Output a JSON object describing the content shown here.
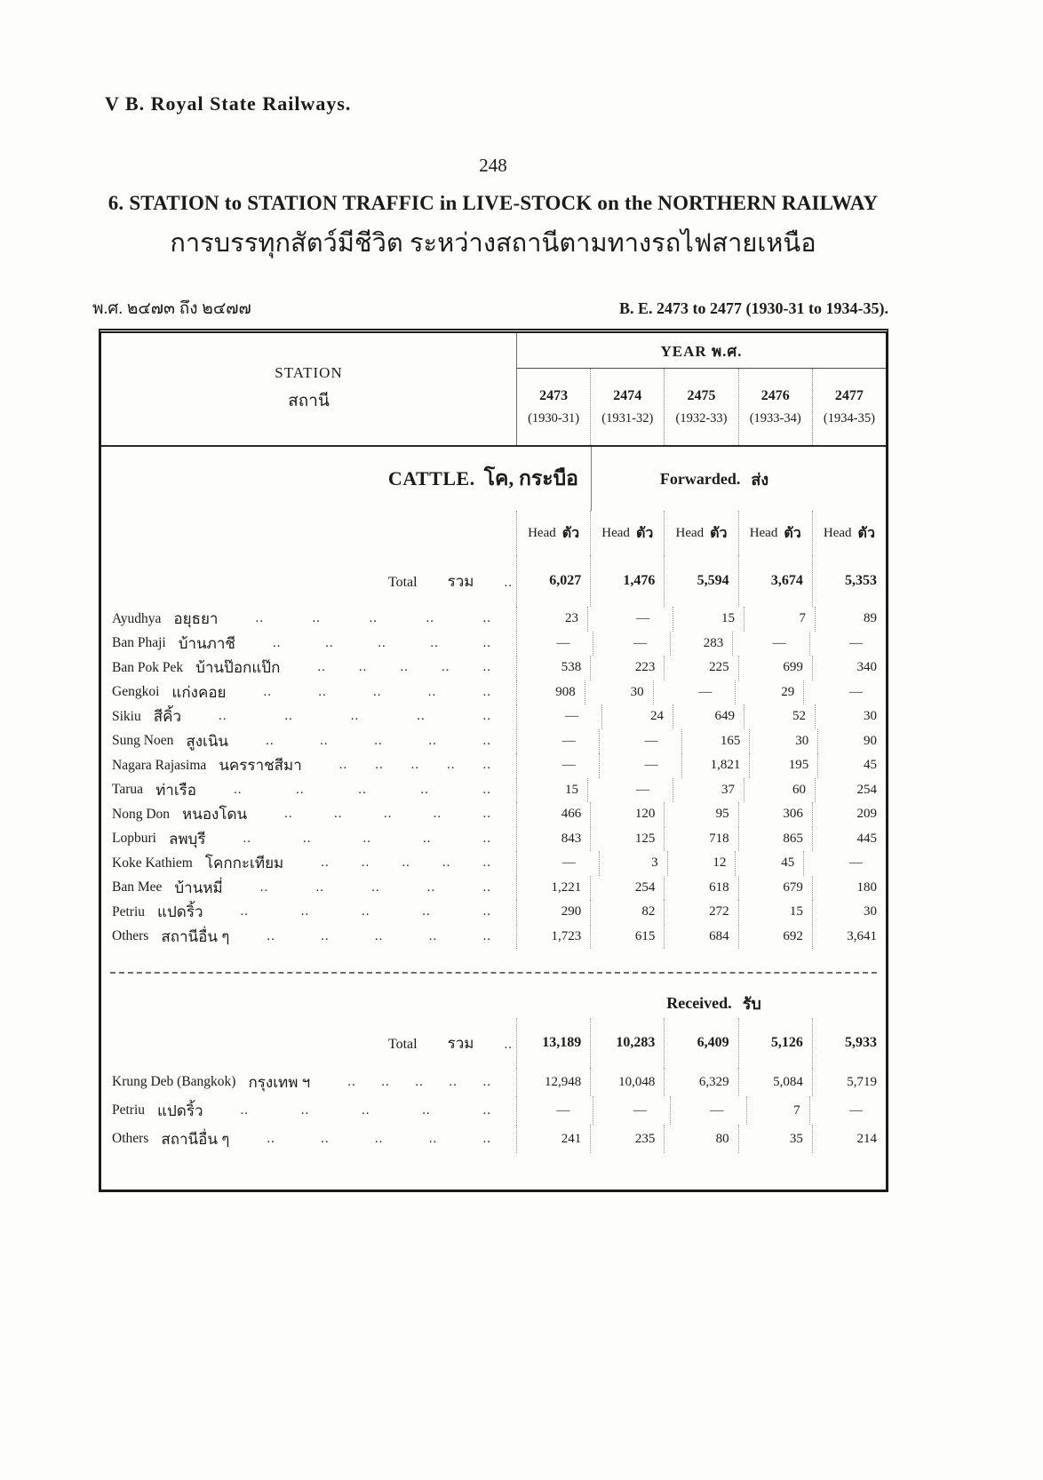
{
  "page": {
    "header": "V B.  Royal State Railways.",
    "page_number": "248",
    "title": "6.   STATION to STATION TRAFFIC in LIVE-STOCK on the NORTHERN RAILWAY",
    "subtitle_thai": "การบรรทุกสัตว์มีชีวิต   ระหว่างสถานีตามทางรถไฟสายเหนือ",
    "period_thai": "พ.ศ. ๒๔๗๓ ถึง ๒๔๗๗",
    "period_english": "B. E. 2473 to 2477 (1930-31 to 1934-35)."
  },
  "table": {
    "station_header_en": "STATION",
    "station_header_th": "สถานี",
    "year_header": "YEAR  พ.ศ.",
    "year_columns": [
      {
        "be": "2473",
        "ad": "(1930-31)"
      },
      {
        "be": "2474",
        "ad": "(1931-32)"
      },
      {
        "be": "2475",
        "ad": "(1932-33)"
      },
      {
        "be": "2476",
        "ad": "(1933-34)"
      },
      {
        "be": "2477",
        "ad": "(1934-35)"
      }
    ],
    "unit_en": "Head",
    "unit_th": "ตัว",
    "leader_dots": "..",
    "total_label_en": "Total",
    "total_label_th": "รวม",
    "sections": [
      {
        "id": "forwarded",
        "category_en": "CATTLE.",
        "category_th": "โค, กระบือ",
        "direction_en": "Forwarded.",
        "direction_th": "ส่ง",
        "total_values": [
          "6,027",
          "1,476",
          "5,594",
          "3,674",
          "5,353"
        ],
        "rows": [
          {
            "en": "Ayudhya",
            "th": "อยุธยา",
            "values": [
              "23",
              "—",
              "15",
              "7",
              "89"
            ]
          },
          {
            "en": "Ban Phaji",
            "th": "บ้านภาชี",
            "values": [
              "—",
              "—",
              "283",
              "—",
              "—"
            ]
          },
          {
            "en": "Ban Pok Pek",
            "th": "บ้านป๊อกแป๊ก",
            "values": [
              "538",
              "223",
              "225",
              "699",
              "340"
            ]
          },
          {
            "en": "Gengkoi",
            "th": "แก่งคอย",
            "values": [
              "908",
              "30",
              "—",
              "29",
              "—"
            ]
          },
          {
            "en": "Sikiu",
            "th": "สีคิ้ว",
            "values": [
              "—",
              "24",
              "649",
              "52",
              "30"
            ]
          },
          {
            "en": "Sung Noen",
            "th": "สูงเนิน",
            "values": [
              "—",
              "—",
              "165",
              "30",
              "90"
            ]
          },
          {
            "en": "Nagara Rajasima",
            "th": "นครราชสีมา",
            "values": [
              "—",
              "—",
              "1,821",
              "195",
              "45"
            ]
          },
          {
            "en": "Tarua",
            "th": "ท่าเรือ",
            "values": [
              "15",
              "—",
              "37",
              "60",
              "254"
            ]
          },
          {
            "en": "Nong Don",
            "th": "หนองโดน",
            "values": [
              "466",
              "120",
              "95",
              "306",
              "209"
            ]
          },
          {
            "en": "Lopburi",
            "th": "ลพบุรี",
            "values": [
              "843",
              "125",
              "718",
              "865",
              "445"
            ]
          },
          {
            "en": "Koke Kathiem",
            "th": "โคกกะเทียม",
            "values": [
              "—",
              "3",
              "12",
              "45",
              "—"
            ]
          },
          {
            "en": "Ban Mee",
            "th": "บ้านหมี่",
            "values": [
              "1,221",
              "254",
              "618",
              "679",
              "180"
            ]
          },
          {
            "en": "Petriu",
            "th": "แปดริ้ว",
            "values": [
              "290",
              "82",
              "272",
              "15",
              "30"
            ]
          },
          {
            "en": "Others",
            "th": "สถานีอื่น ๆ",
            "values": [
              "1,723",
              "615",
              "684",
              "692",
              "3,641"
            ]
          }
        ]
      },
      {
        "id": "received",
        "direction_en": "Received.",
        "direction_th": "รับ",
        "total_values": [
          "13,189",
          "10,283",
          "6,409",
          "5,126",
          "5,933"
        ],
        "rows": [
          {
            "en": "Krung Deb (Bangkok)",
            "th": "กรุงเทพ ฯ",
            "values": [
              "12,948",
              "10,048",
              "6,329",
              "5,084",
              "5,719"
            ]
          },
          {
            "en": "Petriu",
            "th": "แปดริ้ว",
            "values": [
              "—",
              "—",
              "—",
              "7",
              "—"
            ]
          },
          {
            "en": "Others",
            "th": "สถานีอื่น ๆ",
            "values": [
              "241",
              "235",
              "80",
              "35",
              "214"
            ]
          }
        ]
      }
    ]
  }
}
